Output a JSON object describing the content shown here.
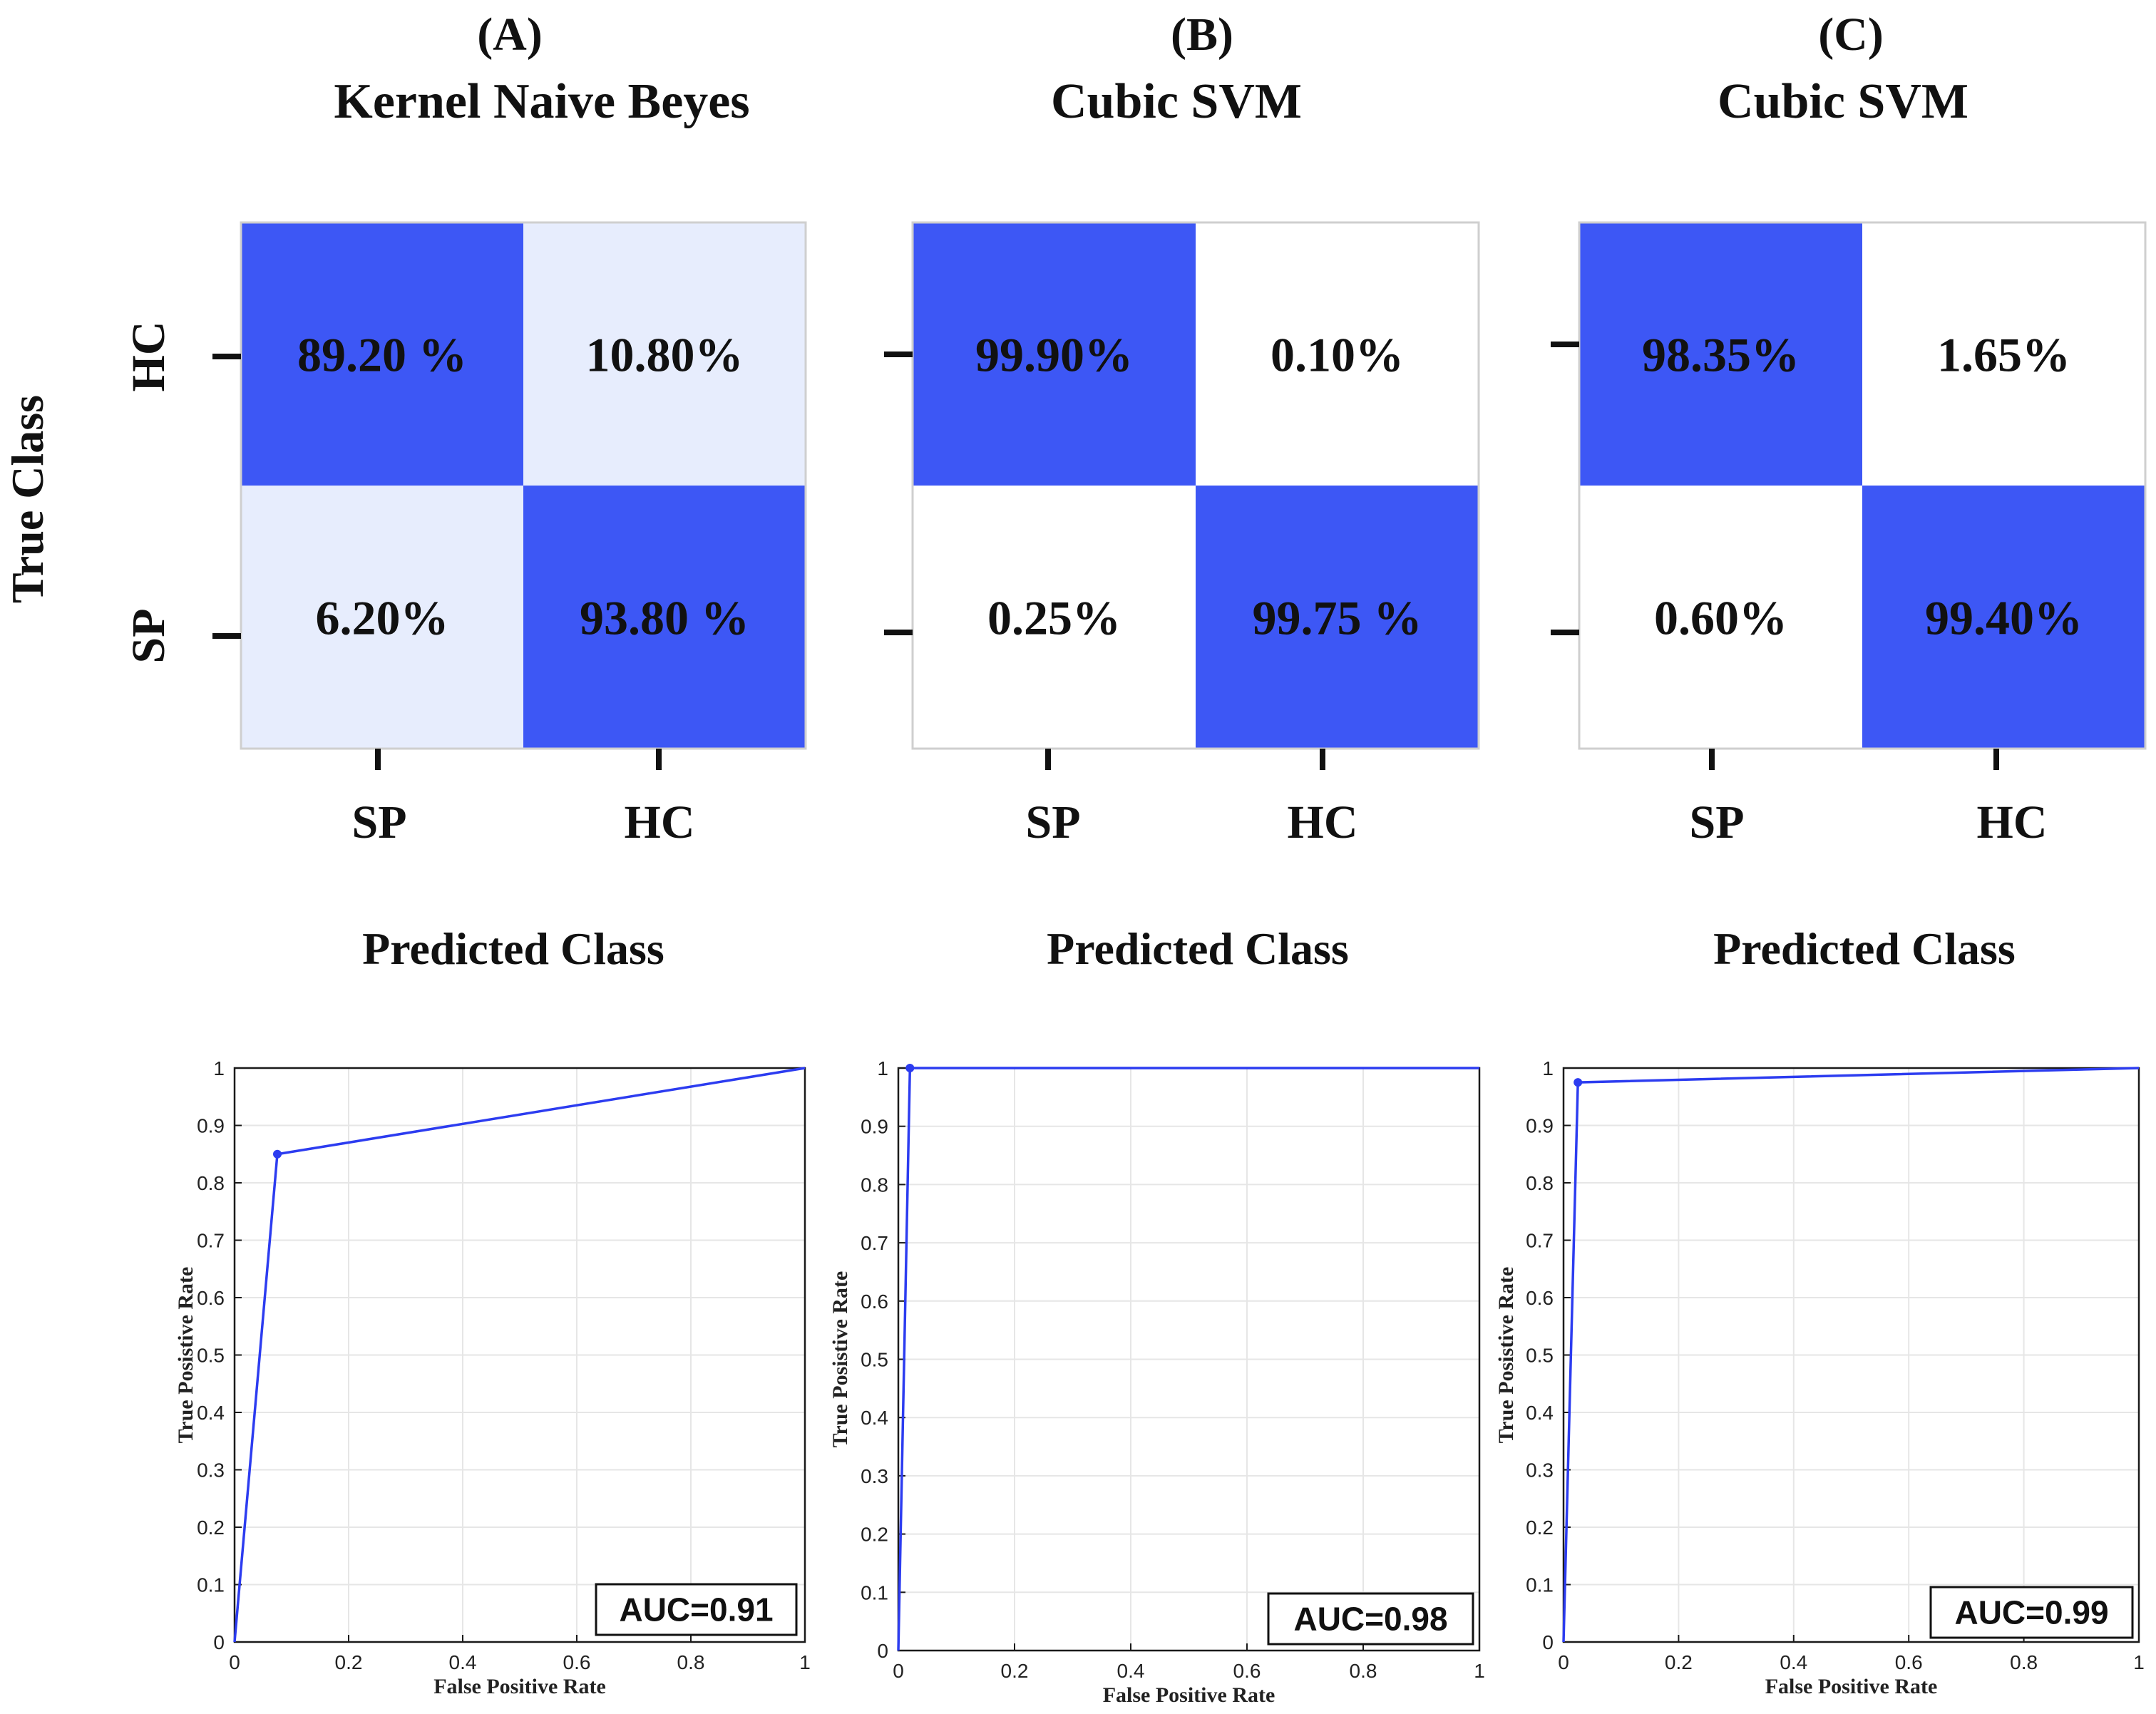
{
  "figure": {
    "true_class_label": "True Class",
    "class_labels": [
      "HC",
      "SP"
    ],
    "predicted_class_label": "Predicted Class",
    "colors": {
      "high": "#3d57f5",
      "light": "#e7edfd",
      "none": "#ffffff",
      "roc_line": "#2c3cf0",
      "grid": "#e6e6e6",
      "axis": "#1a1a1a"
    }
  },
  "panels": [
    {
      "letter": "(A)",
      "model": "Kernel Naive Beyes"
    },
    {
      "letter": "(B)",
      "model": "Cubic SVM"
    },
    {
      "letter": "(C)",
      "model": "Cubic SVM"
    }
  ],
  "chart_data": [
    {
      "type": "heatmap",
      "title": "Kernel Naive Beyes",
      "ylabel": "True Class",
      "xlabel": "Predicted Class",
      "rows": [
        "HC",
        "SP"
      ],
      "columns": [
        "SP",
        "HC"
      ],
      "cells": [
        [
          "89.20 %",
          "10.80%"
        ],
        [
          "6.20%",
          "93.80 %"
        ]
      ],
      "values": [
        [
          89.2,
          10.8
        ],
        [
          6.2,
          93.8
        ]
      ]
    },
    {
      "type": "heatmap",
      "title": "Cubic SVM",
      "ylabel": "True Class",
      "xlabel": "Predicted Class",
      "rows": [
        "HC",
        "SP"
      ],
      "columns": [
        "SP",
        "HC"
      ],
      "cells": [
        [
          "99.90%",
          "0.10%"
        ],
        [
          "0.25%",
          "99.75 %"
        ]
      ],
      "values": [
        [
          99.9,
          0.1
        ],
        [
          0.25,
          99.75
        ]
      ]
    },
    {
      "type": "heatmap",
      "title": "Cubic SVM",
      "ylabel": "True Class",
      "xlabel": "Predicted Class",
      "rows": [
        "HC",
        "SP"
      ],
      "columns": [
        "SP",
        "HC"
      ],
      "cells": [
        [
          "98.35%",
          "1.65%"
        ],
        [
          "0.60%",
          "99.40%"
        ]
      ],
      "values": [
        [
          98.35,
          1.65
        ],
        [
          0.6,
          99.4
        ]
      ]
    },
    {
      "type": "line",
      "xlabel": "False Positive Rate",
      "ylabel": "True Posistive Rate",
      "xlim": [
        0,
        1
      ],
      "ylim": [
        0,
        1
      ],
      "x_ticks": [
        "0",
        "0.2",
        "0.4",
        "0.6",
        "0.8",
        "1"
      ],
      "y_ticks": [
        "0",
        "0.1",
        "0.2",
        "0.3",
        "0.4",
        "0.5",
        "0.6",
        "0.7",
        "0.8",
        "0.9",
        "1"
      ],
      "grid": true,
      "legend": "AUC=0.91",
      "legend_position": "bottom-right",
      "series": [
        {
          "x": [
            0,
            0.075,
            1
          ],
          "y": [
            0,
            0.85,
            1
          ]
        }
      ],
      "marker": {
        "x": 0.075,
        "y": 0.85
      }
    },
    {
      "type": "line",
      "xlabel": "False Positive Rate",
      "ylabel": "True Posistive Rate",
      "xlim": [
        0,
        1
      ],
      "ylim": [
        0,
        1
      ],
      "x_ticks": [
        "0",
        "0.2",
        "0.4",
        "0.6",
        "0.8",
        "1"
      ],
      "y_ticks": [
        "0",
        "0.1",
        "0.2",
        "0.3",
        "0.4",
        "0.5",
        "0.6",
        "0.7",
        "0.8",
        "0.9",
        "1"
      ],
      "grid": true,
      "legend": "AUC=0.98",
      "legend_position": "bottom-right",
      "series": [
        {
          "x": [
            0,
            0.02,
            1
          ],
          "y": [
            0,
            1,
            1
          ]
        }
      ],
      "marker": {
        "x": 0.02,
        "y": 1
      }
    },
    {
      "type": "line",
      "xlabel": "False Positive Rate",
      "ylabel": "True Posistive Rate",
      "xlim": [
        0,
        1
      ],
      "ylim": [
        0,
        1
      ],
      "x_ticks": [
        "0",
        "0.2",
        "0.4",
        "0.6",
        "0.8",
        "1"
      ],
      "y_ticks": [
        "0",
        "0.1",
        "0.2",
        "0.3",
        "0.4",
        "0.5",
        "0.6",
        "0.7",
        "0.8",
        "0.9",
        "1"
      ],
      "grid": true,
      "legend": "AUC=0.99",
      "legend_position": "bottom-right",
      "series": [
        {
          "x": [
            0,
            0.025,
            1
          ],
          "y": [
            0,
            0.975,
            1
          ]
        }
      ],
      "marker": {
        "x": 0.025,
        "y": 0.975
      }
    }
  ]
}
